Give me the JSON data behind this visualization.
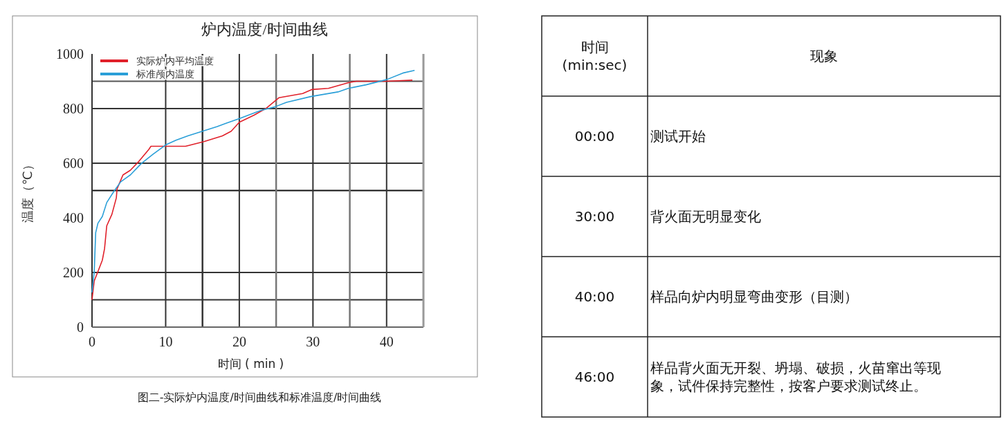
{
  "chart_data": [
    {
      "type": "line",
      "title": "炉内温度/时间曲线",
      "xlabel": "时间 ( min )",
      "ylabel": "温度（℃）",
      "xlim": [
        0,
        45
      ],
      "ylim": [
        0,
        1000
      ],
      "xticks": [
        0,
        10,
        20,
        30,
        40
      ],
      "yticks": [
        0,
        200,
        400,
        600,
        800,
        1000
      ],
      "grid": false,
      "legend": "top left",
      "series": [
        {
          "name": "实际炉内平均温度",
          "color": "#e0202a",
          "x": [
            0,
            0.3,
            0.8,
            1.4,
            1.7,
            2,
            2.7,
            3.3,
            3.4,
            4.2,
            5.2,
            6.4,
            7.7,
            8,
            9.8,
            12.7,
            15.2,
            17.7,
            18.9,
            20,
            22,
            23.7,
            25.4,
            28.6,
            29.9,
            32.1,
            35,
            35.9,
            40,
            43.5
          ],
          "values": [
            100,
            169,
            203,
            245,
            287,
            371,
            413,
            473,
            506,
            557,
            574,
            608,
            650,
            662,
            662,
            662,
            679,
            700,
            717,
            750,
            776,
            802,
            840,
            855,
            870,
            874,
            896,
            900,
            900,
            904
          ]
        },
        {
          "name": "标准颅内温度",
          "color": "#2a9fd8",
          "x": [
            0,
            0.3,
            0.5,
            0.8,
            1.4,
            2,
            3,
            3.9,
            5.2,
            6.7,
            8.3,
            10,
            11.4,
            13,
            15,
            17,
            18.2,
            20,
            22.9,
            24.8,
            26.4,
            29.7,
            33.4,
            34.8,
            37.2,
            40,
            42.2,
            43.8
          ],
          "values": [
            127,
            203,
            346,
            380,
            405,
            456,
            498,
            532,
            557,
            599,
            633,
            667,
            684,
            700,
            717,
            734,
            746,
            763,
            793,
            806,
            823,
            844,
            861,
            874,
            887,
            906,
            930,
            940
          ]
        }
      ],
      "ref_lines": [
        {
          "axis": "y",
          "value": 100,
          "color": "#333333"
        },
        {
          "axis": "y",
          "value": 200,
          "color": "#333333"
        },
        {
          "axis": "y",
          "value": 500,
          "color": "#111111"
        },
        {
          "axis": "y",
          "value": 600,
          "color": "#333333"
        },
        {
          "axis": "y",
          "value": 800,
          "color": "#333333"
        },
        {
          "axis": "y",
          "value": 900,
          "color": "#555555"
        },
        {
          "axis": "x",
          "value": 10,
          "color": "#333333"
        },
        {
          "axis": "x",
          "value": 15,
          "color": "#333333"
        },
        {
          "axis": "x",
          "value": 20,
          "color": "#333333"
        },
        {
          "axis": "x",
          "value": 25,
          "color": "#777777"
        },
        {
          "axis": "x",
          "value": 30,
          "color": "#333333"
        },
        {
          "axis": "x",
          "value": 35,
          "color": "#777777"
        },
        {
          "axis": "x",
          "value": 40,
          "color": "#333333"
        }
      ],
      "annotations": [
        "图二-实际炉内温度/时间曲线和标准温度/时间曲线"
      ]
    },
    {
      "type": "other",
      "annotations": [
        "时间\n(min:sec)",
        "现象",
        "00:00",
        "测试开始",
        "30:00",
        "背火面无明显变化",
        "40:00",
        "样品向炉内明显弯曲变形（目测）",
        "46:00",
        "样品背火面无开裂、坍塌、破损，火苗窜出等现象，试件保持完整性，按客户要求测试终止。"
      ]
    }
  ]
}
